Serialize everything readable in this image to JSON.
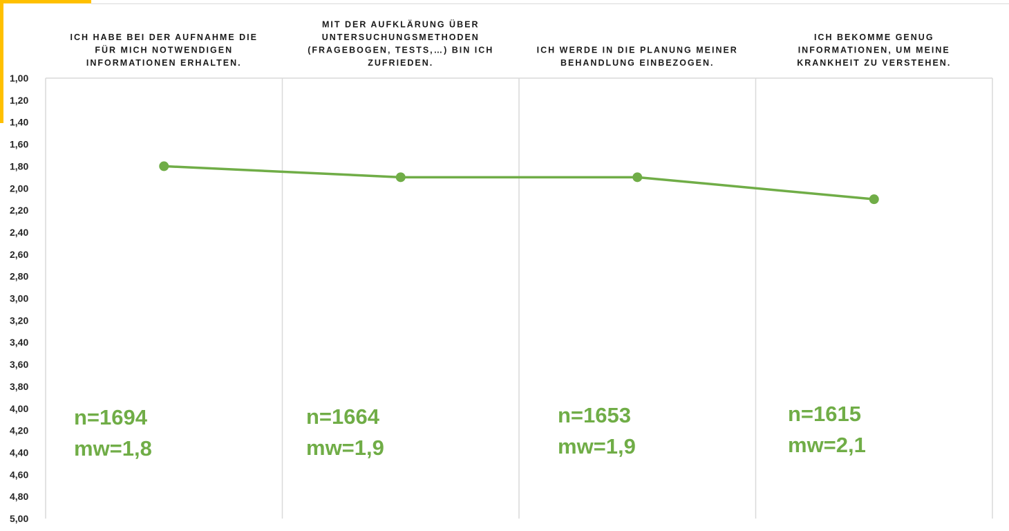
{
  "colors": {
    "accent": "#FFC000",
    "series": "#70AD47",
    "grid": "#D9D9D9",
    "text": "#262626"
  },
  "chart_data": {
    "type": "line",
    "categories": [
      [
        "ICH HABE BEI DER AUFNAHME DIE",
        "FÜR MICH NOTWENDIGEN",
        "INFORMATIONEN ERHALTEN."
      ],
      [
        "MIT DER AUFKLÄRUNG ÜBER",
        "UNTERSUCHUNGSMETHODEN",
        "(FRAGEBOGEN, TESTS,…) BIN ICH",
        "ZUFRIEDEN."
      ],
      [
        "ICH WERDE IN DIE PLANUNG MEINER",
        "BEHANDLUNG EINBEZOGEN."
      ],
      [
        "ICH BEKOMME GENUG",
        "INFORMATIONEN, UM MEINE",
        "KRANKHEIT ZU VERSTEHEN."
      ]
    ],
    "values": [
      1.8,
      1.9,
      1.9,
      2.1
    ],
    "ylim": [
      1.0,
      5.0
    ],
    "y_inverted": true,
    "yticks": [
      "1,00",
      "1,20",
      "1,40",
      "1,60",
      "1,80",
      "2,00",
      "2,20",
      "2,40",
      "2,60",
      "2,80",
      "3,00",
      "3,20",
      "3,40",
      "3,60",
      "3,80",
      "4,00",
      "4,20",
      "4,40",
      "4,60",
      "4,80",
      "5,00"
    ],
    "grid": "vertical",
    "annotations": [
      {
        "n": "n=1694",
        "mw": "mw=1,8"
      },
      {
        "n": "n=1664",
        "mw": "mw=1,9"
      },
      {
        "n": "n=1653",
        "mw": "mw=1,9"
      },
      {
        "n": "n=1615",
        "mw": "mw=2,1"
      }
    ]
  }
}
